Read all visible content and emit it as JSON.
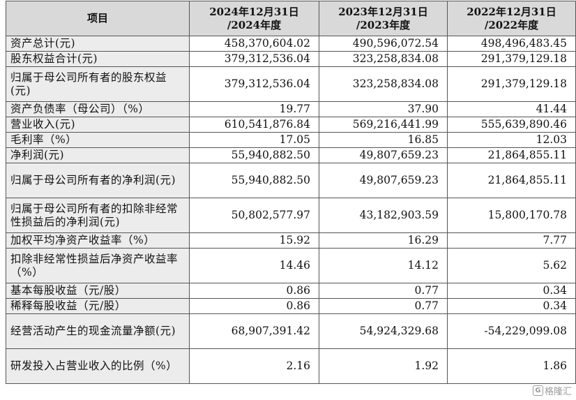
{
  "table": {
    "headers": [
      "项目",
      "2024年12月31日\n/2024年度",
      "2023年12月31日\n/2023年度",
      "2022年12月31日\n/2022年度"
    ],
    "rows": [
      {
        "label": "资产总计(元)",
        "values": [
          "458,370,604.02",
          "490,596,072.54",
          "498,496,483.45"
        ]
      },
      {
        "label": "股东权益合计(元)",
        "values": [
          "379,312,536.04",
          "323,258,834.08",
          "291,379,129.18"
        ]
      },
      {
        "label": "归属于母公司所有者的股东权益(元)",
        "values": [
          "379,312,536.04",
          "323,258,834.08",
          "291,379,129.18"
        ]
      },
      {
        "label": "资产负债率（母公司）（%）",
        "values": [
          "19.77",
          "37.90",
          "41.44"
        ]
      },
      {
        "label": "营业收入(元)",
        "values": [
          "610,541,876.84",
          "569,216,441.99",
          "555,639,890.46"
        ]
      },
      {
        "label": "毛利率（%）",
        "values": [
          "17.05",
          "16.85",
          "12.03"
        ]
      },
      {
        "label": "净利润(元)",
        "values": [
          "55,940,882.50",
          "49,807,659.23",
          "21,864,855.11"
        ]
      },
      {
        "label": "归属于母公司所有者的净利润(元)",
        "values": [
          "55,940,882.50",
          "49,807,659.23",
          "21,864,855.11"
        ]
      },
      {
        "label": "归属于母公司所有者的扣除非经常性损益后的净利润(元)",
        "values": [
          "50,802,577.97",
          "43,182,903.59",
          "15,800,170.78"
        ]
      },
      {
        "label": "加权平均净资产收益率（%）",
        "values": [
          "15.92",
          "16.29",
          "7.77"
        ]
      },
      {
        "label": "扣除非经常性损益后净资产收益率（%）",
        "values": [
          "14.46",
          "14.12",
          "5.62"
        ]
      },
      {
        "label": "基本每股收益（元/股）",
        "values": [
          "0.86",
          "0.77",
          "0.34"
        ]
      },
      {
        "label": "稀释每股收益（元/股）",
        "values": [
          "0.86",
          "0.77",
          "0.34"
        ]
      },
      {
        "label": "经营活动产生的现金流量净额(元)",
        "values": [
          "68,907,391.42",
          "54,924,329.68",
          "-54,229,099.08"
        ]
      },
      {
        "label": "研发投入占营业收入的比例（%）",
        "values": [
          "2.16",
          "1.92",
          "1.86"
        ]
      }
    ]
  },
  "watermark": {
    "badge": "G",
    "text": "格隆汇"
  }
}
